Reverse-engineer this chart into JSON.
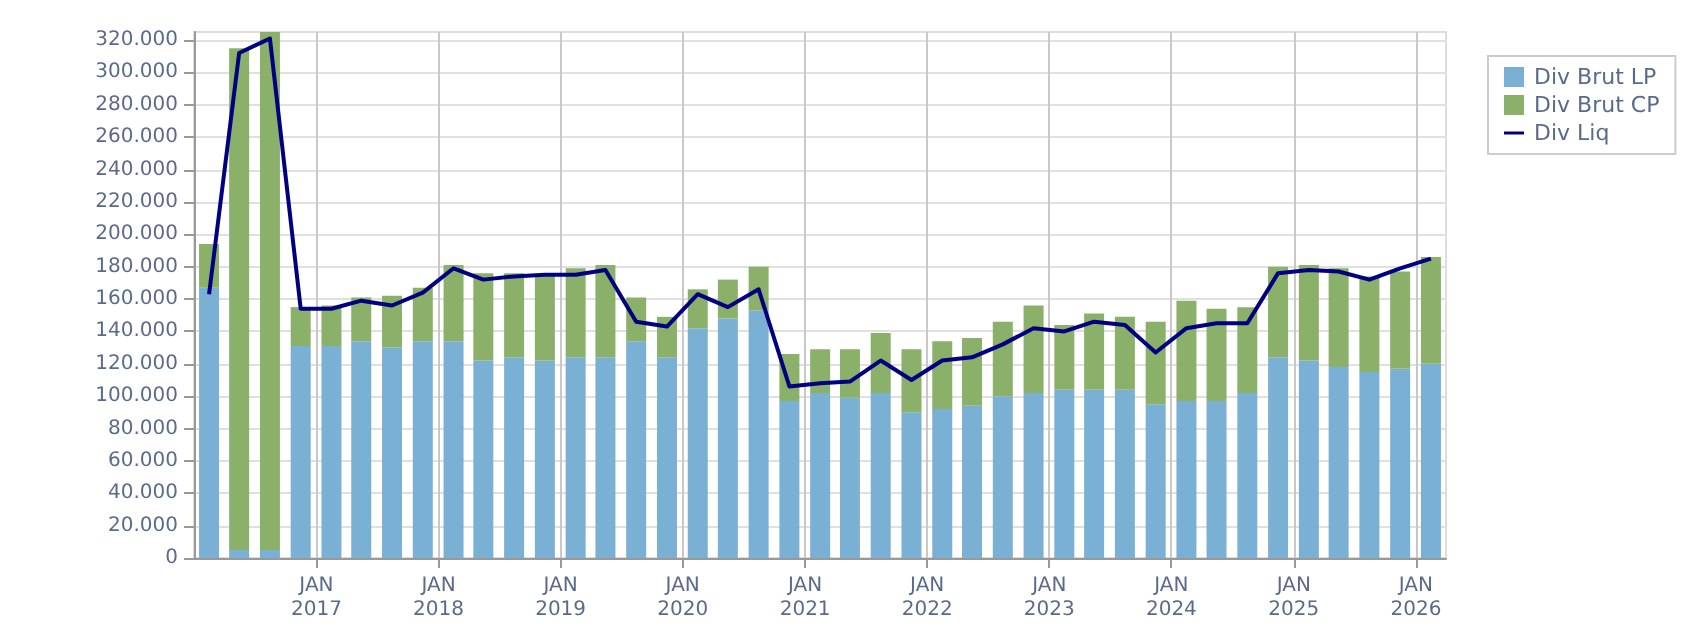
{
  "chart_data": {
    "type": "bar",
    "stacked": true,
    "x": [
      "2016-02-15",
      "2016-05-15",
      "2016-08-15",
      "2016-11-15",
      "2017-02-15",
      "2017-05-15",
      "2017-08-15",
      "2017-11-15",
      "2018-02-15",
      "2018-05-15",
      "2018-08-15",
      "2018-11-15",
      "2019-02-15",
      "2019-05-15",
      "2019-08-15",
      "2019-11-15",
      "2020-02-15",
      "2020-05-15",
      "2020-08-15",
      "2020-11-15",
      "2021-02-15",
      "2021-05-15",
      "2021-08-15",
      "2021-11-15",
      "2022-02-15",
      "2022-05-15",
      "2022-08-15",
      "2022-11-15",
      "2023-02-15",
      "2023-05-15",
      "2023-08-15",
      "2023-11-15",
      "2024-02-15",
      "2024-05-15",
      "2024-08-15",
      "2024-11-15",
      "2025-02-15",
      "2025-05-15",
      "2025-08-15",
      "2025-11-15",
      "2026-02-15"
    ],
    "series": [
      {
        "name": "Div Brut LP",
        "color": "#7ab0d4",
        "values": [
          167000,
          5000,
          5000,
          131000,
          131000,
          134000,
          130000,
          134000,
          134000,
          122000,
          124000,
          122000,
          124000,
          124000,
          134000,
          124000,
          142000,
          148000,
          153000,
          97000,
          102000,
          99000,
          102000,
          90000,
          92000,
          94000,
          100000,
          102000,
          104000,
          104000,
          104000,
          95000,
          97000,
          97000,
          102000,
          124000,
          122000,
          118000,
          115000,
          117000,
          120000
        ]
      },
      {
        "name": "Div Brut CP",
        "color": "#8ab06a",
        "values": [
          27000,
          310000,
          320000,
          24000,
          25000,
          27000,
          32000,
          33000,
          47000,
          54000,
          52000,
          53000,
          55000,
          57000,
          27000,
          25000,
          24000,
          24000,
          27000,
          29000,
          27000,
          30000,
          37000,
          39000,
          42000,
          42000,
          46000,
          54000,
          40000,
          47000,
          45000,
          51000,
          62000,
          57000,
          53000,
          56000,
          59000,
          61000,
          59000,
          60000,
          66000
        ]
      },
      {
        "name": "Div Liq",
        "type": "line",
        "color": "#000080",
        "values": [
          163000,
          312000,
          321000,
          154000,
          154000,
          159000,
          156000,
          164000,
          179000,
          172000,
          174000,
          175000,
          175000,
          178000,
          146000,
          143000,
          163000,
          155000,
          166000,
          106000,
          108000,
          109000,
          122000,
          110000,
          122000,
          124000,
          132000,
          142000,
          140000,
          146000,
          144000,
          127000,
          142000,
          145000,
          145000,
          176000,
          178000,
          177000,
          172000,
          179000,
          185000
        ]
      }
    ],
    "xlim": [
      "2016-01-01",
      "2026-04-01"
    ],
    "xticks": [
      {
        "value": "2017-01-01",
        "label": "JAN\n2017"
      },
      {
        "value": "2018-01-01",
        "label": "JAN\n2018"
      },
      {
        "value": "2019-01-01",
        "label": "JAN\n2019"
      },
      {
        "value": "2020-01-01",
        "label": "JAN\n2020"
      },
      {
        "value": "2021-01-01",
        "label": "JAN\n2021"
      },
      {
        "value": "2022-01-01",
        "label": "JAN\n2022"
      },
      {
        "value": "2023-01-01",
        "label": "JAN\n2023"
      },
      {
        "value": "2024-01-01",
        "label": "JAN\n2024"
      },
      {
        "value": "2025-01-01",
        "label": "JAN\n2025"
      },
      {
        "value": "2026-01-01",
        "label": "JAN\n2026"
      }
    ],
    "ylim": [
      0,
      325000
    ],
    "yticks": [
      {
        "value": 0,
        "label": "0"
      },
      {
        "value": 20000,
        "label": "20.000"
      },
      {
        "value": 40000,
        "label": "40.000"
      },
      {
        "value": 60000,
        "label": "60.000"
      },
      {
        "value": 80000,
        "label": "80.000"
      },
      {
        "value": 100000,
        "label": "100.000"
      },
      {
        "value": 120000,
        "label": "120.000"
      },
      {
        "value": 140000,
        "label": "140.000"
      },
      {
        "value": 160000,
        "label": "160.000"
      },
      {
        "value": 180000,
        "label": "180.000"
      },
      {
        "value": 200000,
        "label": "200.000"
      },
      {
        "value": 220000,
        "label": "220.000"
      },
      {
        "value": 240000,
        "label": "240.000"
      },
      {
        "value": 260000,
        "label": "260.000"
      },
      {
        "value": 280000,
        "label": "280.000"
      },
      {
        "value": 300000,
        "label": "300.000"
      },
      {
        "value": 320000,
        "label": "320.000"
      }
    ],
    "grid": true,
    "legend": "top right",
    "marker": "none",
    "line_style": "solid"
  }
}
